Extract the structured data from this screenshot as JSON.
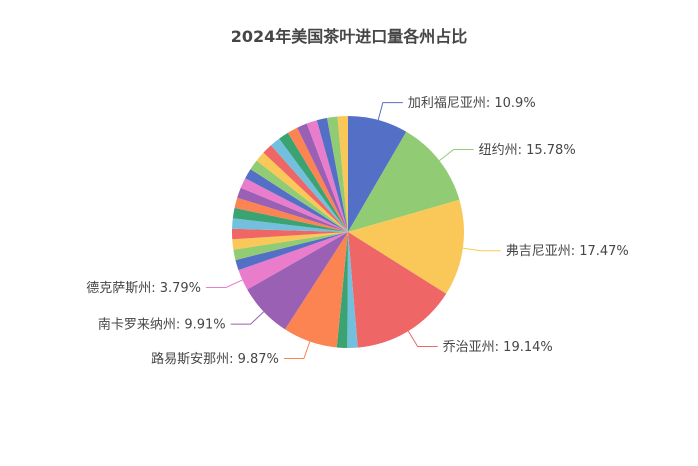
{
  "chart_data": {
    "type": "pie",
    "title": "2024年美国茶叶进口量各州占比",
    "colors": [
      "#5470c6",
      "#91cc75",
      "#fac858",
      "#ee6666",
      "#73c0de",
      "#3ba272",
      "#fc8452",
      "#9a60b4",
      "#ea7ccc"
    ],
    "slices": [
      {
        "name": "加利福尼亚州",
        "value": 10.9,
        "label": "加利福尼亚州: 10.9%"
      },
      {
        "name": "纽约州",
        "value": 15.78,
        "label": "纽约州: 15.78%"
      },
      {
        "name": "弗吉尼亚州",
        "value": 17.47,
        "label": "弗吉尼亚州: 17.47%"
      },
      {
        "name": "乔治亚州",
        "value": 19.14,
        "label": "乔治亚州: 19.14%"
      },
      {
        "value": 0.6
      },
      {
        "value": 0.6
      },
      {
        "name": "路易斯安那州",
        "value": 9.87,
        "label": "路易斯安那州: 9.87%"
      },
      {
        "name": "南卡罗来纳州",
        "value": 9.91,
        "label": "南卡罗来纳州: 9.91%"
      },
      {
        "name": "德克萨斯州",
        "value": 3.79,
        "label": "德克萨斯州: 3.79%"
      },
      {
        "value": 0.57
      },
      {
        "value": 0.57
      },
      {
        "value": 0.57
      },
      {
        "value": 0.57
      },
      {
        "value": 0.57
      },
      {
        "value": 0.57
      },
      {
        "value": 0.57
      },
      {
        "value": 0.57
      },
      {
        "value": 0.57
      },
      {
        "value": 0.57
      },
      {
        "value": 0.57
      },
      {
        "value": 0.57
      },
      {
        "value": 0.57
      },
      {
        "value": 0.57
      },
      {
        "value": 0.57
      },
      {
        "value": 0.57
      },
      {
        "value": 0.57
      },
      {
        "value": 0.57
      },
      {
        "value": 0.57
      },
      {
        "value": 0.57
      },
      {
        "value": 0.57
      }
    ]
  }
}
